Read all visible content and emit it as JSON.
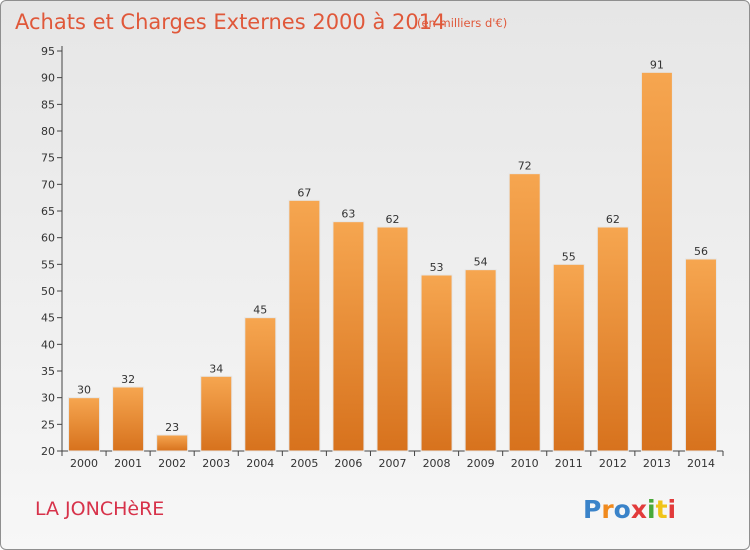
{
  "chart_data": {
    "type": "bar",
    "title": "Achats et Charges Externes 2000 à 2014",
    "subtitle": "(en milliers d'€)",
    "categories": [
      "2000",
      "2001",
      "2002",
      "2003",
      "2004",
      "2005",
      "2006",
      "2007",
      "2008",
      "2009",
      "2010",
      "2011",
      "2012",
      "2013",
      "2014"
    ],
    "values": [
      30,
      32,
      23,
      34,
      45,
      67,
      63,
      62,
      53,
      54,
      72,
      55,
      62,
      91,
      56
    ],
    "ylim": [
      20,
      95
    ],
    "yticks": [
      20,
      25,
      30,
      35,
      40,
      45,
      50,
      55,
      60,
      65,
      70,
      75,
      80,
      85,
      90,
      95
    ],
    "xlabel": "",
    "ylabel": "",
    "grid": false,
    "legend": "none",
    "bar_color": "#f28f2c"
  },
  "footer": {
    "location": "LA JONCHèRE",
    "brand": "Proxiti"
  },
  "colors": {
    "title": "#e0583a",
    "location": "#d7324a",
    "brand_letters": [
      "#3a83c9",
      "#f08a1e",
      "#3a83c9",
      "#e23b3b",
      "#48a93a",
      "#f0c419",
      "#e23b3b"
    ]
  }
}
